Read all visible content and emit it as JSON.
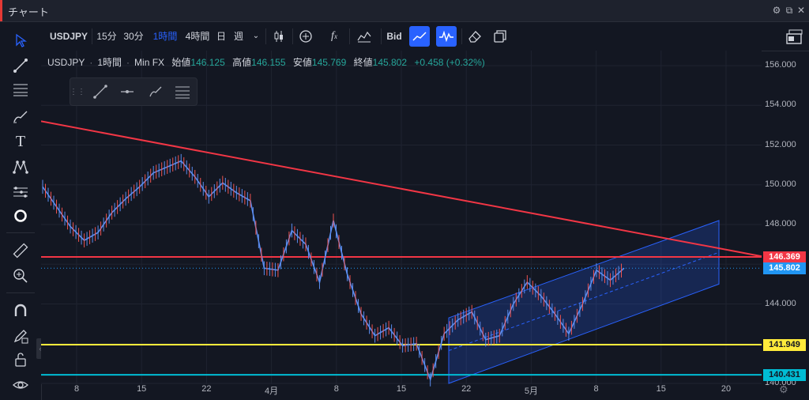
{
  "window": {
    "title": "チャート"
  },
  "toolbar": {
    "symbol": "USDJPY",
    "intervals": [
      "15分",
      "30分",
      "1時間",
      "4時間",
      "日",
      "週"
    ],
    "active_interval": "1時間",
    "price_type": "Bid"
  },
  "legend": {
    "symbol": "USDJPY",
    "interval": "1時間",
    "source": "Min FX",
    "open_label": "始値",
    "open": "146.125",
    "high_label": "高値",
    "high": "146.155",
    "low_label": "安値",
    "low": "145.769",
    "close_label": "終値",
    "close": "145.802",
    "change": "+0.458 (+0.32%)"
  },
  "price_axis": {
    "ticks": [
      "156.000",
      "154.000",
      "152.000",
      "150.000",
      "148.000",
      "144.000",
      "140.000"
    ]
  },
  "time_axis": {
    "ticks": [
      "8",
      "15",
      "22",
      "4月",
      "8",
      "15",
      "22",
      "5月",
      "8",
      "15",
      "20"
    ]
  },
  "price_labels": [
    {
      "value": "146.369",
      "color": "#f23645",
      "text_color": "#ffffff"
    },
    {
      "value": "145.802",
      "color": "#2196f3",
      "text_color": "#ffffff"
    },
    {
      "value": "141.949",
      "color": "#ffeb3b",
      "text_color": "#131722"
    },
    {
      "value": "140.431",
      "color": "#00bcd4",
      "text_color": "#131722"
    }
  ],
  "chart_data": {
    "type": "line",
    "symbol": "USDJPY",
    "interval": "1時間",
    "ylim": [
      139.8,
      156.6
    ],
    "y_ticks": [
      156,
      154,
      152,
      150,
      148,
      146,
      144,
      142,
      140
    ],
    "x_ticks": [
      "8",
      "15",
      "22",
      "4月",
      "8",
      "15",
      "22",
      "5月",
      "8",
      "15",
      "20"
    ],
    "price_path": [
      149.9,
      148.9,
      147.9,
      147.2,
      147.6,
      148.6,
      149.3,
      149.9,
      150.6,
      150.9,
      151.2,
      150.4,
      149.4,
      150.1,
      149.6,
      149.2,
      145.8,
      145.7,
      147.7,
      147.0,
      145.1,
      148.2,
      145.5,
      143.5,
      142.4,
      142.8,
      141.9,
      142.0,
      140.2,
      142.5,
      143.2,
      143.6,
      142.2,
      142.4,
      144.0,
      145.1,
      144.4,
      143.5,
      142.5,
      144.0,
      145.7,
      145.2,
      145.8
    ],
    "horizontal_lines": [
      {
        "price": 146.369,
        "color": "#f23645"
      },
      {
        "price": 141.949,
        "color": "#ffeb3b"
      },
      {
        "price": 140.431,
        "color": "#00bcd4"
      }
    ],
    "trendline": {
      "color": "#f23645",
      "from_price": 153.2,
      "to_price": 146.4
    },
    "channel": {
      "color": "#2962ff",
      "lower_start": 140.0,
      "lower_end": 145.0,
      "upper_start": 143.3,
      "upper_end": 148.2
    }
  }
}
